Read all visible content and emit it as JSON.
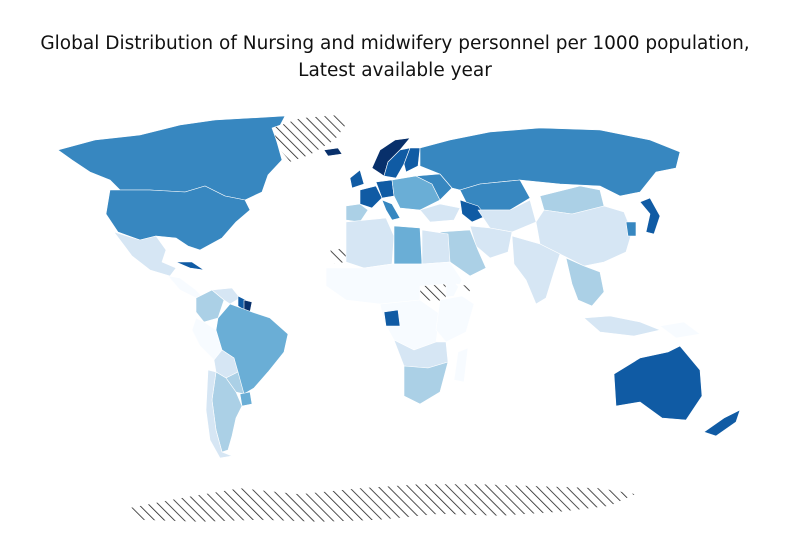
{
  "title": {
    "line1": "Global Distribution of Nursing and midwifery personnel per 1000 population,",
    "line2": "Latest available year"
  },
  "map": {
    "indicator": "Nursing and midwifery personnel per 1000 population",
    "colormap": "Blues",
    "no_data_pattern": "diagonal hatch",
    "palette": {
      "level_0": "#f7fbff",
      "level_1": "#d6e6f4",
      "level_2": "#abd0e6",
      "level_3": "#6aaed6",
      "level_4": "#3787c0",
      "level_5": "#105ba4",
      "level_6": "#08306b",
      "no_data_stroke": "#222222",
      "border": "#ffffff"
    },
    "regions": [
      {
        "name": "Canada",
        "level": 4
      },
      {
        "name": "Greenland",
        "level": "no-data"
      },
      {
        "name": "United States",
        "level": 4
      },
      {
        "name": "Mexico",
        "level": 1
      },
      {
        "name": "Cuba",
        "level": 5
      },
      {
        "name": "Central America",
        "level": 0
      },
      {
        "name": "Colombia",
        "level": 2
      },
      {
        "name": "Venezuela",
        "level": 1
      },
      {
        "name": "Guyana",
        "level": 5
      },
      {
        "name": "Suriname",
        "level": 6
      },
      {
        "name": "Brazil",
        "level": 3
      },
      {
        "name": "Peru",
        "level": 0
      },
      {
        "name": "Bolivia",
        "level": 1
      },
      {
        "name": "Paraguay",
        "level": 2
      },
      {
        "name": "Uruguay",
        "level": 3
      },
      {
        "name": "Argentina",
        "level": 2
      },
      {
        "name": "Chile",
        "level": 1
      },
      {
        "name": "Iceland",
        "level": 6
      },
      {
        "name": "Norway",
        "level": 6
      },
      {
        "name": "Sweden",
        "level": 5
      },
      {
        "name": "Finland",
        "level": 5
      },
      {
        "name": "United Kingdom",
        "level": 5
      },
      {
        "name": "France",
        "level": 5
      },
      {
        "name": "Germany",
        "level": 5
      },
      {
        "name": "Spain",
        "level": 2
      },
      {
        "name": "Italy",
        "level": 4
      },
      {
        "name": "Eastern Europe",
        "level": 3
      },
      {
        "name": "Ukraine",
        "level": 4
      },
      {
        "name": "Russia",
        "level": 4
      },
      {
        "name": "Kazakhstan",
        "level": 4
      },
      {
        "name": "Turkey",
        "level": 1
      },
      {
        "name": "Caucasus",
        "level": 5
      },
      {
        "name": "Saudi Arabia",
        "level": 2
      },
      {
        "name": "Iran",
        "level": 1
      },
      {
        "name": "Central Asia",
        "level": 1
      },
      {
        "name": "Mongolia",
        "level": 2
      },
      {
        "name": "China",
        "level": 1
      },
      {
        "name": "Japan",
        "level": 5
      },
      {
        "name": "Korea",
        "level": 4
      },
      {
        "name": "India",
        "level": 1
      },
      {
        "name": "Southeast Asia",
        "level": 2
      },
      {
        "name": "Indonesia",
        "level": 1
      },
      {
        "name": "Algeria",
        "level": 1
      },
      {
        "name": "Libya",
        "level": 3
      },
      {
        "name": "Egypt",
        "level": 1
      },
      {
        "name": "Western Sahara",
        "level": "no-data"
      },
      {
        "name": "Sahel",
        "level": 0
      },
      {
        "name": "Sudan",
        "level": "no-data"
      },
      {
        "name": "Eritrea",
        "level": "no-data"
      },
      {
        "name": "Central Africa",
        "level": 0
      },
      {
        "name": "Gabon",
        "level": 5
      },
      {
        "name": "East Africa",
        "level": 0
      },
      {
        "name": "Southern Africa",
        "level": 1
      },
      {
        "name": "South Africa",
        "level": 2
      },
      {
        "name": "Madagascar",
        "level": 0
      },
      {
        "name": "Australia",
        "level": 5
      },
      {
        "name": "New Zealand",
        "level": 5
      },
      {
        "name": "Papua New Guinea",
        "level": 0
      },
      {
        "name": "Antarctica",
        "level": "no-data"
      }
    ]
  }
}
